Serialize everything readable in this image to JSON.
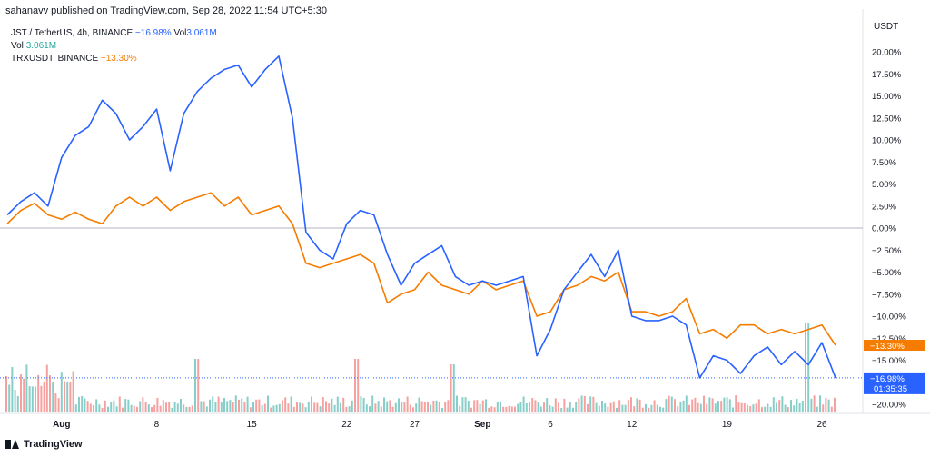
{
  "header": {
    "published": "sahanavv published on TradingView.com, Sep 28, 2022 11:54 UTC+5:30"
  },
  "legend": {
    "jst": {
      "name": "JST / TetherUS, 4h, BINANCE",
      "change": "−16.98%",
      "vol_label": "Vol",
      "vol_value": "3.061M"
    },
    "vol": {
      "label": "Vol",
      "value": "3.061M"
    },
    "trx": {
      "name": "TRXUSDT, BINANCE",
      "change": "−13.30%"
    }
  },
  "axis_currency": "USDT",
  "badges": {
    "trx": "−13.30%",
    "jst": "−16.98%",
    "jst_timer": "01:35:35"
  },
  "footer": {
    "brand": "TradingView"
  },
  "colors": {
    "jst": "#2962ff",
    "trx": "#f57c00",
    "vol_up": "#26a69a",
    "vol_down": "#ef5350"
  },
  "chart_data": {
    "type": "line",
    "x_ticks": [
      "Aug",
      "8",
      "15",
      "22",
      "27",
      "Sep",
      "6",
      "12",
      "19",
      "26"
    ],
    "y_ticks": [
      "20.00%",
      "17.50%",
      "15.00%",
      "12.50%",
      "10.00%",
      "7.50%",
      "5.00%",
      "2.50%",
      "0.00%",
      "−2.50%",
      "−5.00%",
      "−7.50%",
      "−10.00%",
      "−12.50%",
      "−15.00%",
      "−17.50%",
      "−20.00%"
    ],
    "ylim": [
      -20,
      20
    ],
    "y_unit": "percent change",
    "x_days_from_jul28": [
      0,
      1,
      2,
      3,
      4,
      5,
      6,
      7,
      8,
      9,
      10,
      11,
      12,
      13,
      14,
      15,
      16,
      17,
      18,
      19,
      20,
      21,
      22,
      23,
      24,
      25,
      26,
      27,
      28,
      29,
      30,
      31,
      32,
      33,
      34,
      35,
      36,
      37,
      38,
      39,
      40,
      41,
      42,
      43,
      44,
      45,
      46,
      47,
      48,
      49,
      50,
      51,
      52,
      53,
      54,
      55,
      56,
      57,
      58,
      59,
      60,
      61
    ],
    "series": [
      {
        "name": "JST / TetherUS, 4h, BINANCE",
        "values": [
          1.5,
          3.0,
          4.0,
          2.5,
          8.0,
          10.5,
          11.5,
          14.5,
          13.0,
          10.0,
          11.5,
          13.5,
          6.5,
          13.0,
          15.5,
          17.0,
          18.0,
          18.5,
          16.0,
          18.0,
          19.5,
          12.5,
          -0.5,
          -2.5,
          -3.5,
          0.5,
          2.0,
          1.5,
          -3.0,
          -6.5,
          -4.0,
          -3.0,
          -2.0,
          -5.5,
          -6.5,
          -6.0,
          -6.5,
          -6.0,
          -5.5,
          -14.5,
          -11.5,
          -7.0,
          -5.0,
          -3.0,
          -5.5,
          -2.5,
          -10.0,
          -10.5,
          -10.5,
          -10.0,
          -11.0,
          -17.0,
          -14.5,
          -15.0,
          -16.5,
          -14.5,
          -13.5,
          -15.5,
          -14.0,
          -15.5,
          -13.0,
          -17.0
        ]
      },
      {
        "name": "TRXUSDT, BINANCE",
        "values": [
          0.5,
          2.0,
          2.8,
          1.5,
          1.0,
          1.8,
          1.0,
          0.5,
          2.5,
          3.5,
          2.5,
          3.5,
          2.0,
          3.0,
          3.5,
          4.0,
          2.5,
          3.5,
          1.5,
          2.0,
          2.5,
          0.5,
          -4.0,
          -4.5,
          -4.0,
          -3.5,
          -3.0,
          -4.0,
          -8.5,
          -7.5,
          -7.0,
          -5.0,
          -6.5,
          -7.0,
          -7.5,
          -6.0,
          -7.0,
          -6.5,
          -6.0,
          -10.0,
          -9.5,
          -7.0,
          -6.5,
          -5.5,
          -6.0,
          -5.0,
          -9.5,
          -9.5,
          -10.0,
          -9.5,
          -8.0,
          -12.0,
          -11.5,
          -12.5,
          -11.0,
          -11.0,
          -12.0,
          -11.5,
          -12.0,
          -11.5,
          -11.0,
          -13.3
        ]
      }
    ],
    "volume": {
      "name": "Vol",
      "last": "3.061M"
    },
    "legend_placement": "top-left",
    "grid": false
  }
}
